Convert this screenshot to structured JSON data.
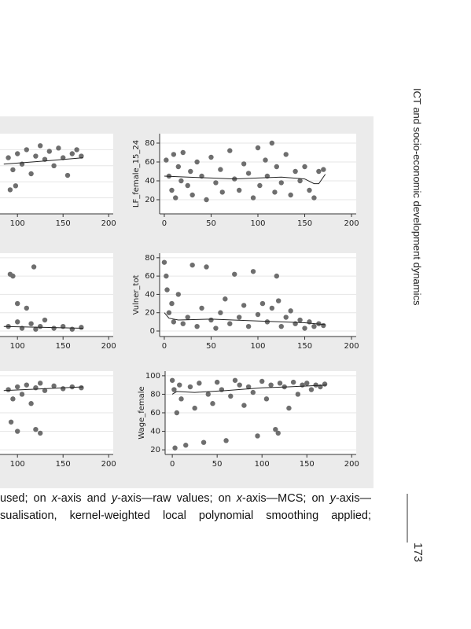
{
  "header": {
    "running_title": "ICT and socio-economic development dynamics",
    "page_number": "173"
  },
  "caption": {
    "lines": [
      [
        "used; on ",
        "x",
        "-axis and ",
        "y",
        "-axis—raw values; on ",
        "x",
        "-axis—MCS; on ",
        "y",
        "-axis—"
      ],
      [
        "sualisation, kernel-weighted local polynomial smoothing applied;"
      ]
    ]
  },
  "chart_data": [
    {
      "type": "scatter",
      "xlim": [
        -5,
        205
      ],
      "xticks": [
        100,
        150,
        200
      ],
      "ylim": [
        0,
        100
      ],
      "ygrid": [
        20,
        40,
        60,
        80
      ],
      "color": "#6e6e6e",
      "fit_color": "#222222",
      "x": [
        90,
        95,
        100,
        105,
        110,
        115,
        120,
        125,
        130,
        135,
        140,
        145,
        150,
        155,
        160,
        165,
        170,
        92,
        98
      ],
      "values": [
        70,
        55,
        75,
        62,
        80,
        50,
        72,
        85,
        68,
        78,
        60,
        82,
        70,
        48,
        75,
        80,
        72,
        30,
        35
      ],
      "fit_x": [
        85,
        130,
        172
      ],
      "fit_values": [
        62,
        66,
        70
      ]
    },
    {
      "type": "scatter",
      "ylabel": "LF_female_15_24",
      "xlim": [
        -5,
        205
      ],
      "xticks": [
        0,
        50,
        100,
        150,
        200
      ],
      "ylim": [
        5,
        90
      ],
      "yticks": [
        20,
        40,
        60,
        80
      ],
      "color": "#6e6e6e",
      "fit_color": "#222222",
      "x": [
        2,
        5,
        8,
        10,
        12,
        15,
        18,
        20,
        25,
        28,
        30,
        35,
        40,
        45,
        50,
        55,
        60,
        62,
        70,
        75,
        80,
        85,
        90,
        95,
        100,
        102,
        108,
        110,
        115,
        118,
        120,
        125,
        130,
        135,
        140,
        145,
        150,
        155,
        160,
        165,
        170
      ],
      "values": [
        62,
        45,
        30,
        68,
        22,
        55,
        40,
        70,
        35,
        50,
        25,
        60,
        45,
        20,
        65,
        38,
        52,
        28,
        72,
        42,
        30,
        58,
        48,
        22,
        75,
        35,
        62,
        45,
        80,
        28,
        55,
        38,
        68,
        25,
        50,
        40,
        55,
        30,
        22,
        50,
        52
      ],
      "fit_x": [
        0,
        25,
        50,
        75,
        100,
        125,
        150,
        160,
        165,
        172
      ],
      "fit_values": [
        45,
        44,
        43,
        42,
        43,
        44,
        42,
        37,
        37,
        47
      ]
    },
    {
      "type": "scatter",
      "xlim": [
        -5,
        205
      ],
      "xticks": [
        100,
        150,
        200
      ],
      "ylim": [
        -6,
        85
      ],
      "ygrid": [
        0,
        20,
        40,
        60,
        80
      ],
      "color": "#6e6e6e",
      "fit_color": "#222222",
      "x": [
        90,
        95,
        100,
        105,
        110,
        115,
        118,
        120,
        125,
        130,
        140,
        150,
        160,
        170,
        92,
        100
      ],
      "values": [
        5,
        60,
        10,
        3,
        25,
        8,
        70,
        2,
        5,
        12,
        3,
        5,
        2,
        4,
        62,
        30
      ],
      "fit_x": [
        85,
        130,
        172
      ],
      "fit_values": [
        5,
        4,
        3
      ]
    },
    {
      "type": "scatter",
      "ylabel": "Vulner_tot",
      "xlim": [
        -5,
        205
      ],
      "xticks": [
        0,
        50,
        100,
        150,
        200
      ],
      "ylim": [
        -6,
        85
      ],
      "yticks": [
        0,
        20,
        40,
        60,
        80
      ],
      "color": "#6e6e6e",
      "fit_color": "#222222",
      "x": [
        0,
        2,
        3,
        5,
        8,
        10,
        15,
        20,
        25,
        30,
        35,
        40,
        45,
        50,
        55,
        60,
        65,
        70,
        75,
        80,
        85,
        90,
        95,
        100,
        105,
        110,
        115,
        120,
        122,
        125,
        130,
        135,
        140,
        145,
        150,
        155,
        160,
        165,
        170
      ],
      "values": [
        75,
        60,
        45,
        20,
        30,
        10,
        40,
        8,
        15,
        72,
        5,
        25,
        70,
        12,
        3,
        20,
        35,
        8,
        62,
        15,
        28,
        5,
        65,
        18,
        30,
        10,
        25,
        60,
        33,
        5,
        15,
        22,
        8,
        12,
        3,
        10,
        5,
        8,
        6
      ],
      "fit_x": [
        0,
        5,
        15,
        50,
        100,
        150,
        172
      ],
      "fit_values": [
        20,
        14,
        12,
        13,
        11,
        9,
        7
      ]
    },
    {
      "type": "scatter",
      "xlim": [
        -5,
        205
      ],
      "xticks": [
        100,
        150,
        200
      ],
      "ylim": [
        15,
        105
      ],
      "ygrid": [
        20,
        40,
        60,
        80,
        100
      ],
      "color": "#6e6e6e",
      "fit_color": "#222222",
      "x": [
        90,
        95,
        100,
        105,
        110,
        115,
        120,
        125,
        130,
        140,
        150,
        160,
        170,
        93,
        100,
        120,
        125
      ],
      "values": [
        85,
        75,
        88,
        80,
        90,
        70,
        87,
        92,
        84,
        89,
        86,
        88,
        87,
        50,
        40,
        42,
        38
      ],
      "fit_x": [
        85,
        130,
        172
      ],
      "fit_values": [
        84,
        86,
        88
      ]
    },
    {
      "type": "scatter",
      "ylabel": "Wage_female",
      "xlim": [
        -8,
        205
      ],
      "xticks": [
        0,
        50,
        100,
        150,
        200
      ],
      "ylim": [
        15,
        105
      ],
      "yticks": [
        20,
        40,
        60,
        80,
        100
      ],
      "color": "#6e6e6e",
      "fit_color": "#222222",
      "x": [
        0,
        2,
        3,
        5,
        8,
        10,
        15,
        20,
        25,
        30,
        35,
        40,
        45,
        50,
        55,
        60,
        65,
        70,
        75,
        80,
        85,
        90,
        95,
        100,
        105,
        110,
        115,
        118,
        120,
        125,
        130,
        135,
        140,
        145,
        150,
        155,
        160,
        165,
        170
      ],
      "values": [
        95,
        85,
        22,
        60,
        90,
        75,
        25,
        88,
        65,
        92,
        28,
        80,
        70,
        93,
        85,
        30,
        78,
        95,
        90,
        68,
        88,
        82,
        35,
        94,
        75,
        90,
        42,
        38,
        92,
        88,
        65,
        93,
        80,
        90,
        92,
        85,
        90,
        88,
        91
      ],
      "fit_x": [
        0,
        5,
        25,
        60,
        100,
        130,
        172
      ],
      "fit_values": [
        80,
        83,
        82,
        84,
        87,
        88,
        90
      ]
    }
  ]
}
